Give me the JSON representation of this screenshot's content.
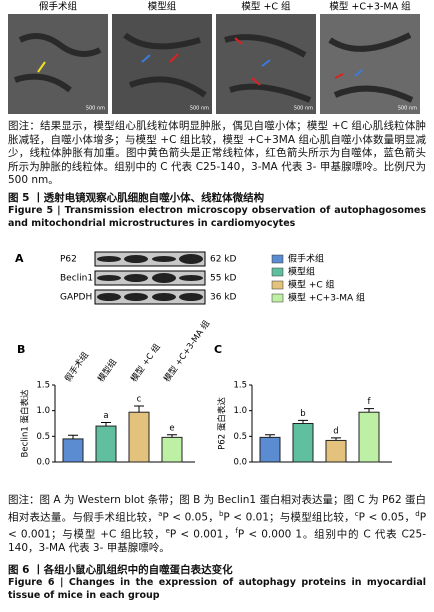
{
  "figure5": {
    "panels": [
      "假手术组",
      "模型组",
      "模型 +C 组",
      "模型 +C+3-MA 组"
    ],
    "scale_label": "500 nm",
    "note": "图注：结果显示，模型组心肌线粒体明显肿胀，偶见自噬小体；模型 +C 组心肌线粒体肿胀减轻，自噬小体增多；与模型 +C 组比较，模型 +C+3MA 组心肌自噬小体数量明显减少，线粒体肿胀有加重。图中黄色箭头是正常线粒体，红色箭头所示为自噬体，蓝色箭头所示为肿胀的线粒体。组别中的 C 代表 C25-140，3-MA 代表 3- 甲基腺嘌呤。比例尺为 500 nm。",
    "title_cn": "图 5 丨透射电镜观察心肌细胞自噬小体、线粒体微结构",
    "title_en": "Figure 5 | Transmission electron microscopy observation of autophagosomes and mitochondrial microstructures in cardiomyocytes"
  },
  "figure6": {
    "panel_a": "A",
    "blot": {
      "proteins": [
        "P62",
        "Beclin1",
        "GAPDH"
      ],
      "sizes": [
        "62 kD",
        "55 kD",
        "36 kD"
      ]
    },
    "groups": [
      "假手术组",
      "模型组",
      "模型 +C 组",
      "模型 +C+3-MA 组"
    ],
    "colors": [
      "#5b8bd0",
      "#5fbf9f",
      "#e2c27c",
      "#bdf0a4"
    ],
    "charts": [
      {
        "panel": "B",
        "ylabel": "Beclin1 蛋白表达",
        "values": [
          0.45,
          0.7,
          0.97,
          0.48
        ],
        "errors": [
          0.07,
          0.07,
          0.12,
          0.05
        ],
        "sig": [
          null,
          "a",
          "c",
          "e"
        ],
        "ylim": [
          0,
          1.5
        ],
        "yticks": [
          {
            "value": 0,
            "label": "0.0"
          },
          {
            "value": 0.5,
            "label": "0.5"
          },
          {
            "value": 1,
            "label": "1.0"
          },
          {
            "value": 1.5,
            "label": "1.5"
          }
        ]
      },
      {
        "panel": "C",
        "ylabel": "P62 蛋白表达",
        "values": [
          0.48,
          0.75,
          0.42,
          0.97
        ],
        "errors": [
          0.05,
          0.06,
          0.05,
          0.07
        ],
        "sig": [
          null,
          "b",
          "d",
          "f"
        ],
        "ylim": [
          0,
          1.5
        ],
        "yticks": [
          {
            "value": 0,
            "label": "0.0"
          },
          {
            "value": 0.5,
            "label": "0.5"
          },
          {
            "value": 1,
            "label": "1.0"
          },
          {
            "value": 1.5,
            "label": "1.5"
          }
        ]
      }
    ],
    "note": [
      "图注：图 A 为 Western blot 条带；图 B 为 Beclin1 蛋白相对表达量；图 C 为 P62 蛋白相对表达量。与假手术组比较，",
      "a",
      "P < 0.05，",
      "b",
      "P < 0.01；与模型组比较，",
      "c",
      "P < 0.05，",
      "d",
      "P < 0.001；与模型 +C 组比较，",
      "e",
      "P < 0.001，",
      "f",
      "P < 0.000 1。组别中的 C 代表 C25-140，3-MA 代表 3- 甲基腺嘌呤。"
    ],
    "title_cn": "图 6 丨各组小鼠心肌组织中的自噬蛋白表达变化",
    "title_en": "Figure 6 | Changes in the expression of autophagy proteins in myocardial tissue of mice in each group"
  }
}
